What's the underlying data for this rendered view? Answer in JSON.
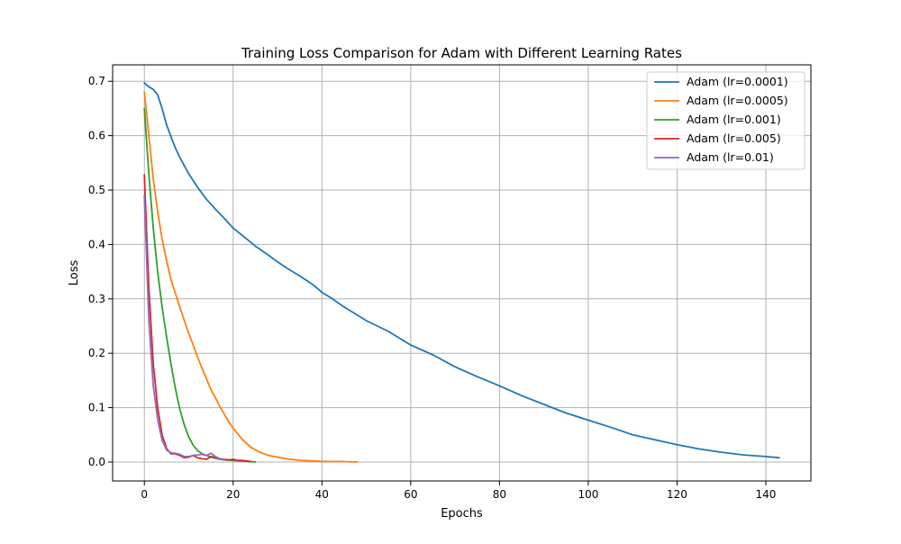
{
  "chart_data": {
    "type": "line",
    "title": "Training Loss Comparison for Adam with Different Learning Rates",
    "xlabel": "Epochs",
    "ylabel": "Loss",
    "xlim": [
      -7.15,
      150.15
    ],
    "ylim": [
      -0.0348,
      0.7302
    ],
    "xticks": [
      0,
      20,
      40,
      60,
      80,
      100,
      120,
      140
    ],
    "yticks": [
      0.0,
      0.1,
      0.2,
      0.3,
      0.4,
      0.5,
      0.6,
      0.7
    ],
    "xtick_labels": [
      "0",
      "20",
      "40",
      "60",
      "80",
      "100",
      "120",
      "140"
    ],
    "ytick_labels": [
      "0.0",
      "0.1",
      "0.2",
      "0.3",
      "0.4",
      "0.5",
      "0.6",
      "0.7"
    ],
    "grid": true,
    "legend_position": "top-right",
    "series": [
      {
        "name": "Adam (lr=0.0001)",
        "color": "#1f77b4",
        "x": [
          0,
          1,
          2,
          3,
          4,
          5,
          6,
          7,
          8,
          10,
          12,
          14,
          16,
          18,
          20,
          22,
          25,
          28,
          30,
          32,
          35,
          38,
          40,
          42,
          45,
          48,
          50,
          55,
          60,
          65,
          70,
          75,
          80,
          85,
          90,
          95,
          100,
          105,
          110,
          115,
          120,
          125,
          130,
          135,
          140,
          143
        ],
        "y": [
          0.697,
          0.69,
          0.685,
          0.675,
          0.65,
          0.62,
          0.598,
          0.577,
          0.56,
          0.53,
          0.505,
          0.483,
          0.465,
          0.448,
          0.43,
          0.417,
          0.397,
          0.38,
          0.368,
          0.357,
          0.342,
          0.326,
          0.312,
          0.302,
          0.285,
          0.27,
          0.26,
          0.24,
          0.215,
          0.197,
          0.175,
          0.157,
          0.14,
          0.122,
          0.106,
          0.09,
          0.077,
          0.064,
          0.05,
          0.041,
          0.032,
          0.024,
          0.018,
          0.013,
          0.01,
          0.008
        ]
      },
      {
        "name": "Adam (lr=0.0005)",
        "color": "#ff7f0e",
        "x": [
          0,
          1,
          2,
          3,
          4,
          5,
          6,
          7,
          8,
          9,
          10,
          11,
          12,
          13,
          14,
          15,
          16,
          17,
          18,
          19,
          20,
          22,
          24,
          26,
          28,
          30,
          32,
          35,
          38,
          40,
          44,
          48
        ],
        "y": [
          0.68,
          0.6,
          0.52,
          0.46,
          0.41,
          0.37,
          0.335,
          0.31,
          0.285,
          0.26,
          0.237,
          0.215,
          0.193,
          0.172,
          0.153,
          0.133,
          0.118,
          0.102,
          0.088,
          0.074,
          0.062,
          0.042,
          0.027,
          0.018,
          0.012,
          0.009,
          0.006,
          0.003,
          0.002,
          0.001,
          0.001,
          0.0
        ]
      },
      {
        "name": "Adam (lr=0.001)",
        "color": "#2ca02c",
        "x": [
          0,
          1,
          2,
          3,
          4,
          5,
          6,
          7,
          8,
          9,
          10,
          11,
          12,
          13,
          14,
          15,
          16,
          17,
          18,
          20,
          22,
          25
        ],
        "y": [
          0.65,
          0.53,
          0.43,
          0.35,
          0.285,
          0.23,
          0.18,
          0.135,
          0.097,
          0.068,
          0.046,
          0.031,
          0.021,
          0.015,
          0.012,
          0.009,
          0.007,
          0.005,
          0.004,
          0.003,
          0.002,
          0.0
        ]
      },
      {
        "name": "Adam (lr=0.005)",
        "color": "#d62728",
        "x": [
          0,
          1,
          2,
          3,
          4,
          5,
          6,
          7,
          8,
          9,
          10,
          11,
          12,
          13,
          14,
          15,
          16,
          17,
          18,
          19,
          20,
          21,
          22,
          23,
          24
        ],
        "y": [
          0.528,
          0.32,
          0.18,
          0.1,
          0.05,
          0.025,
          0.015,
          0.015,
          0.012,
          0.008,
          0.009,
          0.012,
          0.008,
          0.006,
          0.005,
          0.01,
          0.008,
          0.006,
          0.005,
          0.004,
          0.005,
          0.003,
          0.003,
          0.002,
          0.001
        ]
      },
      {
        "name": "Adam (lr=0.01)",
        "color": "#9467bd",
        "x": [
          0,
          1,
          2,
          3,
          4,
          5,
          6,
          7,
          8,
          9,
          10,
          11,
          12,
          13,
          14,
          15,
          16,
          17,
          18
        ],
        "y": [
          0.49,
          0.26,
          0.14,
          0.078,
          0.04,
          0.022,
          0.017,
          0.016,
          0.014,
          0.01,
          0.01,
          0.012,
          0.013,
          0.014,
          0.012,
          0.016,
          0.01,
          0.006,
          0.004
        ]
      }
    ]
  }
}
